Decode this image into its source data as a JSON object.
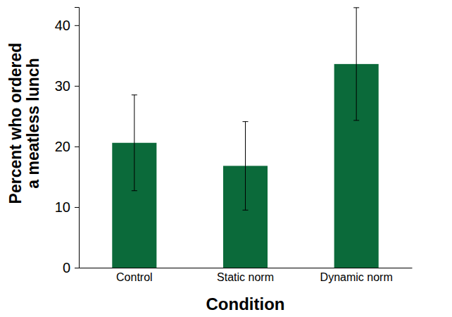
{
  "chart_data": {
    "type": "bar",
    "categories": [
      "Control",
      "Static norm",
      "Dynamic norm"
    ],
    "values": [
      20.6,
      16.8,
      33.6
    ],
    "errors": [
      7.9,
      7.3,
      9.3
    ],
    "color": "#0b6a3a",
    "x_label": "Condition",
    "y_label": [
      "Percent who ordered",
      "a meatless lunch"
    ],
    "ylim": [
      0,
      43
    ],
    "yticks": [
      0,
      10,
      20,
      30,
      40
    ],
    "grid": false
  }
}
